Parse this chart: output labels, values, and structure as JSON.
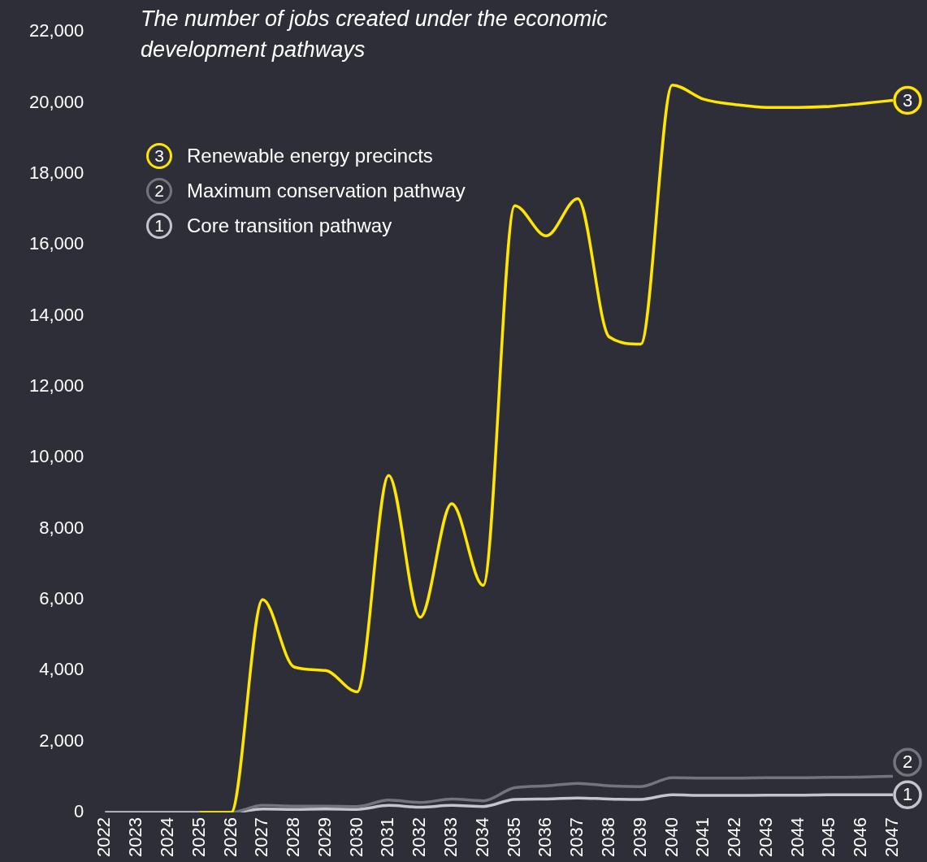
{
  "chart_data": {
    "type": "line",
    "title": "The number of jobs created under the economic development pathways",
    "categories": [
      "2022",
      "2023",
      "2024",
      "2025",
      "2026",
      "2027",
      "2028",
      "2029",
      "2030",
      "2031",
      "2032",
      "2033",
      "2034",
      "2035",
      "2036",
      "2037",
      "2038",
      "2039",
      "2040",
      "2041",
      "2042",
      "2043",
      "2044",
      "2045",
      "2046",
      "2047"
    ],
    "series": [
      {
        "name": "Renewable energy precincts",
        "color": "#ffe600",
        "values": [
          null,
          null,
          null,
          0,
          0,
          6000,
          4100,
          4000,
          3400,
          9500,
          5500,
          8700,
          6400,
          17100,
          16250,
          17300,
          13400,
          13200,
          20500,
          20100,
          19950,
          19870,
          19870,
          19900,
          19980,
          20070
        ]
      },
      {
        "name": "Maximum conservation pathway",
        "color": "#747480",
        "values": [
          null,
          null,
          null,
          0,
          0,
          200,
          180,
          180,
          170,
          350,
          280,
          380,
          330,
          700,
          750,
          820,
          750,
          730,
          980,
          970,
          970,
          980,
          980,
          990,
          1000,
          1020
        ]
      },
      {
        "name": "Core transition pathway",
        "color": "#c4c4cd",
        "values": [
          0,
          0,
          0,
          0,
          0,
          100,
          90,
          100,
          90,
          200,
          150,
          200,
          170,
          370,
          380,
          410,
          380,
          370,
          500,
          480,
          480,
          490,
          490,
          500,
          500,
          500
        ]
      }
    ],
    "annotations": [
      {
        "text": "3",
        "x": "2047",
        "y": 20070
      },
      {
        "text": "2",
        "x": "2047",
        "y": 1020
      },
      {
        "text": "1",
        "x": "2047",
        "y": 500
      }
    ],
    "ylim": [
      0,
      22000
    ],
    "yticks": [
      0,
      {
        "value": 2000,
        "label": "2,000"
      },
      {
        "value": 4000,
        "label": "4,000"
      },
      {
        "value": 6000,
        "label": "6,000"
      },
      {
        "value": 8000,
        "label": "8,000"
      },
      {
        "value": 10000,
        "label": "10,000"
      },
      {
        "value": 12000,
        "label": "12,000"
      },
      {
        "value": 14000,
        "label": "14,000"
      },
      {
        "value": 16000,
        "label": "16,000"
      },
      {
        "value": 18000,
        "label": "18,000"
      },
      {
        "value": 20000,
        "label": "20,000"
      },
      {
        "value": 22000,
        "label": "22,000"
      }
    ],
    "grid": false,
    "legend": "top left",
    "marker": "none",
    "line_style": "solid"
  }
}
